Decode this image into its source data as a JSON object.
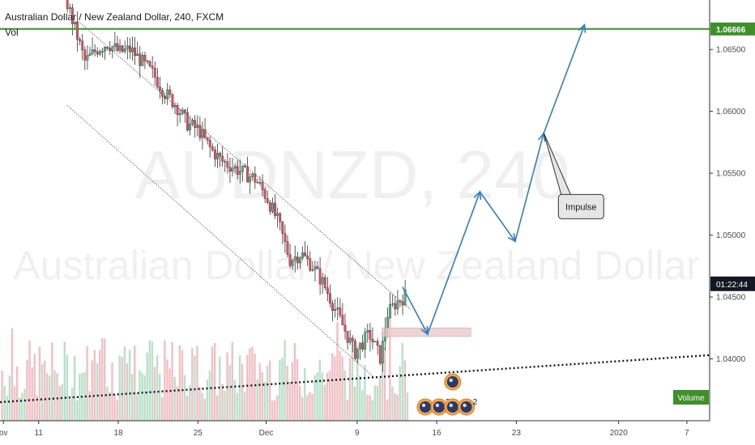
{
  "header": {
    "title": "Australian Dollar / New Zealand Dollar, 240, FXCM",
    "vol_label": "Vol"
  },
  "watermark": {
    "symbol": "AUDNZD, 240",
    "name": "Australian Dollar / New Zealand Dollar"
  },
  "colors": {
    "up": "#53b987",
    "down": "#eb4d5c",
    "vol_up": "#b9e0c8",
    "vol_down": "#f2c0c4",
    "projection": "#2f7fc1",
    "resistance": "#3f8f2a",
    "badge_green": "#3f8f2a",
    "badge_black": "#131722"
  },
  "chart_data": {
    "type": "candlestick",
    "symbol": "AUDNZD",
    "timeframe": "240",
    "source": "FXCM",
    "y_range": [
      1.035,
      1.069
    ],
    "y_ticks": [
      1.04,
      1.045,
      1.05,
      1.055,
      1.06,
      1.065
    ],
    "y_tick_labels": [
      "1.04000",
      "1.04500",
      "1.05000",
      "1.05500",
      "1.06000",
      "1.06500"
    ],
    "x_ticks": [
      {
        "label": "ov",
        "day": 7.9
      },
      {
        "label": "11",
        "day": 11
      },
      {
        "label": "18",
        "day": 18
      },
      {
        "label": "25",
        "day": 25
      },
      {
        "label": "Dec",
        "day": 31
      },
      {
        "label": "9",
        "day": 39
      },
      {
        "label": "16",
        "day": 46
      },
      {
        "label": "23",
        "day": 53
      },
      {
        "label": "2020",
        "day": 62
      },
      {
        "label": "7",
        "day": 68
      }
    ],
    "x_range_days": [
      7.6,
      70.0
    ],
    "price_path": [
      [
        13.0,
        1.07
      ],
      [
        14.0,
        1.067
      ],
      [
        15.0,
        1.064
      ],
      [
        16.0,
        1.065
      ],
      [
        17.0,
        1.0655
      ],
      [
        18.0,
        1.0648
      ],
      [
        19.0,
        1.065
      ],
      [
        20.0,
        1.064
      ],
      [
        21.0,
        1.063
      ],
      [
        22.0,
        1.0615
      ],
      [
        23.0,
        1.0605
      ],
      [
        24.0,
        1.059
      ],
      [
        25.0,
        1.0585
      ],
      [
        26.0,
        1.057
      ],
      [
        27.0,
        1.056
      ],
      [
        28.0,
        1.0555
      ],
      [
        29.0,
        1.055
      ],
      [
        30.0,
        1.0545
      ],
      [
        31.0,
        1.053
      ],
      [
        32.0,
        1.051
      ],
      [
        33.0,
        1.048
      ],
      [
        34.0,
        1.0485
      ],
      [
        35.0,
        1.0475
      ],
      [
        36.0,
        1.046
      ],
      [
        37.0,
        1.044
      ],
      [
        38.0,
        1.042
      ],
      [
        38.7,
        1.0405
      ],
      [
        39.3,
        1.0412
      ],
      [
        40.0,
        1.042
      ],
      [
        40.6,
        1.0408
      ],
      [
        41.0,
        1.04
      ],
      [
        41.5,
        1.0435
      ],
      [
        42.3,
        1.0445
      ],
      [
        43.3,
        1.0452
      ]
    ],
    "resistance": {
      "value": 1.06666,
      "label": "1.06666"
    },
    "current_marker": {
      "value": 1.046,
      "label": "01:22:44"
    },
    "channel": {
      "upper": [
        [
          14.6,
          1.0672
        ],
        [
          43.7,
          1.044
        ]
      ],
      "lower": [
        [
          13.5,
          1.0605
        ],
        [
          40.5,
          1.0385
        ]
      ]
    },
    "trendline_dotted": [
      [
        7.6,
        1.0365
      ],
      [
        70.0,
        1.0403
      ]
    ],
    "projection": [
      [
        43.0,
        1.0458
      ],
      [
        45.2,
        1.042
      ],
      [
        49.8,
        1.0535
      ],
      [
        52.9,
        1.0495
      ],
      [
        55.4,
        1.0582
      ],
      [
        59.0,
        1.067
      ]
    ],
    "demand_zone": {
      "day_start": 41.2,
      "day_end": 49.0,
      "top": 1.0425,
      "bottom": 1.0418
    },
    "annotation": {
      "text": "Impulse",
      "day": 56.7,
      "value": 1.0523,
      "pointer_day": 55.4,
      "pointer_value": 1.0583
    },
    "volume_label": "Volume",
    "event_badges": [
      {
        "day": 45.0,
        "row": 0,
        "count": ""
      },
      {
        "day": 46.2,
        "row": 0,
        "count": "2"
      },
      {
        "day": 47.4,
        "row": 0,
        "count": ""
      },
      {
        "day": 48.6,
        "row": 0,
        "count": "2"
      },
      {
        "day": 47.4,
        "row": 1,
        "count": ""
      }
    ]
  }
}
